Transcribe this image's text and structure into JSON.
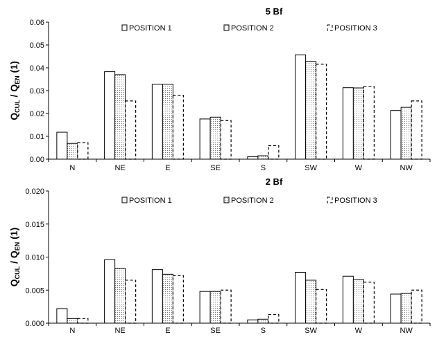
{
  "chart_data": [
    {
      "type": "bar",
      "title": "5 Bf",
      "ylabel": {
        "main": "Q",
        "sub1": "CUL",
        "mid": " / Q",
        "sub2": "EN",
        "tail": " (1)"
      },
      "categories": [
        "N",
        "NE",
        "E",
        "SE",
        "S",
        "SW",
        "W",
        "NW"
      ],
      "ylim": [
        0,
        0.06
      ],
      "yticks": [
        "0.00",
        "0.01",
        "0.02",
        "0.03",
        "0.04",
        "0.05",
        "0.06"
      ],
      "grid": false,
      "legend_position": "top",
      "series": [
        {
          "name": "POSITION 1",
          "style": "solid",
          "values": [
            0.0118,
            0.0383,
            0.0328,
            0.0176,
            0.0011,
            0.0457,
            0.0313,
            0.0213
          ]
        },
        {
          "name": "POSITION 2",
          "style": "dotted",
          "values": [
            0.0069,
            0.037,
            0.0328,
            0.0184,
            0.0015,
            0.0428,
            0.0312,
            0.0227
          ]
        },
        {
          "name": "POSITION 3",
          "style": "dashed",
          "values": [
            0.0072,
            0.0255,
            0.028,
            0.0169,
            0.0059,
            0.0416,
            0.0318,
            0.0255
          ]
        }
      ]
    },
    {
      "type": "bar",
      "title": "2 Bf",
      "ylabel": {
        "main": "Q",
        "sub1": "CUL",
        "mid": " / Q",
        "sub2": "EN",
        "tail": " (1)"
      },
      "categories": [
        "N",
        "NE",
        "E",
        "SE",
        "S",
        "SW",
        "W",
        "NW"
      ],
      "ylim": [
        0,
        0.02
      ],
      "yticks": [
        "0.000",
        "0.005",
        "0.010",
        "0.015",
        "0.020"
      ],
      "grid": false,
      "legend_position": "top",
      "series": [
        {
          "name": "POSITION 1",
          "style": "solid",
          "values": [
            0.0022,
            0.0096,
            0.0081,
            0.0048,
            0.0005,
            0.0077,
            0.0071,
            0.0044
          ]
        },
        {
          "name": "POSITION 2",
          "style": "dotted",
          "values": [
            0.0007,
            0.0083,
            0.0074,
            0.0048,
            0.0006,
            0.0065,
            0.0066,
            0.0045
          ]
        },
        {
          "name": "POSITION 3",
          "style": "dashed",
          "values": [
            0.0007,
            0.0065,
            0.0072,
            0.005,
            0.0013,
            0.0051,
            0.0062,
            0.005
          ]
        }
      ]
    }
  ]
}
